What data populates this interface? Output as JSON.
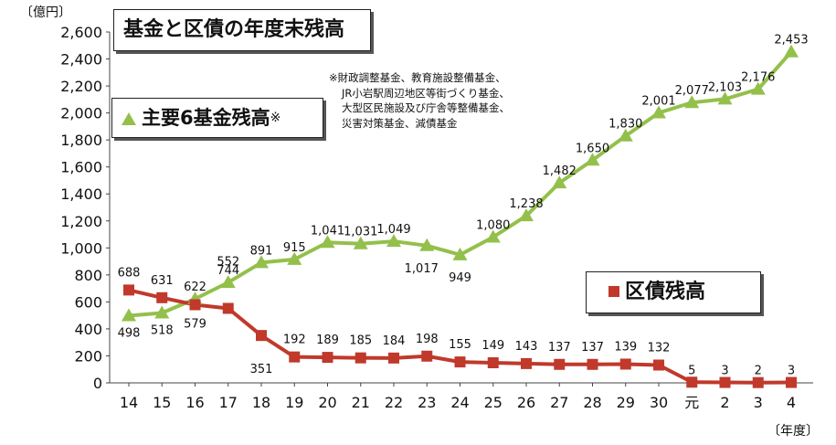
{
  "chart_data": {
    "type": "line",
    "title": "基金と区債の年度末残高",
    "y_unit": "〔億円〕",
    "x_unit": "〔年度〕",
    "categories": [
      "14",
      "15",
      "16",
      "17",
      "18",
      "19",
      "20",
      "21",
      "22",
      "23",
      "24",
      "25",
      "26",
      "27",
      "28",
      "29",
      "30",
      "元",
      "2",
      "3",
      "4"
    ],
    "ylim": [
      0,
      2600
    ],
    "yticks": [
      "0",
      "200",
      "400",
      "600",
      "800",
      "1,000",
      "1,200",
      "1,400",
      "1,600",
      "1,800",
      "2,000",
      "2,200",
      "2,400",
      "2,600"
    ],
    "grid": false,
    "series": [
      {
        "name": "主要6基金残高",
        "name_suffix": "※",
        "color": "#93c04b",
        "marker": "triangle",
        "values": [
          498,
          518,
          622,
          744,
          891,
          915,
          1041,
          1031,
          1049,
          1017,
          949,
          1080,
          1238,
          1482,
          1650,
          1830,
          2001,
          2077,
          2103,
          2176,
          2453
        ],
        "labels": [
          "498",
          "518",
          "622",
          "744",
          "891",
          "915",
          "1,041",
          "1,031",
          "1,049",
          "1,017",
          "949",
          "1,080",
          "1,238",
          "1,482",
          "1,650",
          "1,830",
          "2,001",
          "2,077",
          "2,103",
          "2,176",
          "2,453"
        ]
      },
      {
        "name": "区債残高",
        "color": "#c0392b",
        "marker": "square",
        "values": [
          688,
          631,
          579,
          552,
          351,
          192,
          189,
          185,
          184,
          198,
          155,
          149,
          143,
          137,
          137,
          139,
          132,
          5,
          3,
          2,
          3
        ],
        "labels": [
          "688",
          "631",
          "579",
          "552",
          "351",
          "192",
          "189",
          "185",
          "184",
          "198",
          "155",
          "149",
          "143",
          "137",
          "137",
          "139",
          "132",
          "5",
          "3",
          "2",
          "3"
        ]
      }
    ],
    "note": [
      "※財政調整基金、教育施設整備基金、",
      "JR小岩駅周辺地区等街づくり基金、",
      "大型区民施設及び庁舎等整備基金、",
      "災害対策基金、減債基金"
    ]
  }
}
